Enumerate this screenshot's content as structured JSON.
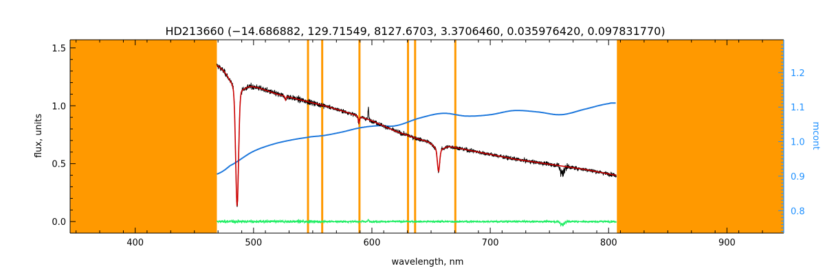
{
  "chart_data": {
    "type": "line",
    "title": "HD213660    (−14.686882, 129.71549, 8127.6703, 3.3706460, 0.035976420, 0.097831770)",
    "xlabel": "wavelength, nm",
    "ylabel": "flux, units",
    "y2label": "mcont",
    "xlim": [
      345,
      948
    ],
    "ylim": [
      -0.1,
      1.57
    ],
    "y2lim": [
      0.735,
      1.295
    ],
    "xticks": [
      400,
      500,
      600,
      700,
      800,
      900
    ],
    "xtick_labels": [
      "400",
      "500",
      "600",
      "700",
      "800",
      "900"
    ],
    "yticks": [
      0.0,
      0.5,
      1.0,
      1.5
    ],
    "ytick_labels": [
      "0.0",
      "0.5",
      "1.0",
      "1.5"
    ],
    "y2ticks": [
      0.8,
      0.9,
      1.0,
      1.1,
      1.2
    ],
    "y2tick_labels": [
      "0.8",
      "0.9",
      "1.0",
      "1.1",
      "1.2"
    ],
    "masked_regions": [
      [
        345,
        469
      ],
      [
        807,
        948
      ]
    ],
    "masked_lines": [
      546,
      558,
      589.5,
      630.5,
      636.5,
      670.5
    ],
    "continuum_knots": {
      "x": [
        469,
        480,
        500,
        520,
        545,
        560,
        575,
        590,
        605,
        620,
        640,
        660,
        680,
        700,
        720,
        740,
        760,
        780,
        800,
        806
      ],
      "y": [
        0.906,
        0.93,
        0.972,
        0.996,
        1.012,
        1.018,
        1.028,
        1.04,
        1.046,
        1.046,
        1.068,
        1.082,
        1.074,
        1.078,
        1.09,
        1.086,
        1.078,
        1.094,
        1.11,
        1.112
      ]
    },
    "model_anchors": {
      "x": [
        469,
        480,
        500,
        520,
        540,
        560,
        580,
        600,
        620,
        640,
        660,
        680,
        700,
        720,
        740,
        760,
        780,
        806
      ],
      "y": [
        1.35,
        1.29,
        1.17,
        1.1,
        1.05,
        1.0,
        0.94,
        0.87,
        0.78,
        0.71,
        0.66,
        0.62,
        0.58,
        0.54,
        0.51,
        0.48,
        0.45,
        0.4
      ]
    },
    "absorption_lines": [
      {
        "x": 486.1,
        "depth": 0.8,
        "width": 1.3
      },
      {
        "x": 434.0,
        "depth": 0.0,
        "width": 1.0
      },
      {
        "x": 656.3,
        "depth": 0.28,
        "width": 1.0
      },
      {
        "x": 589.0,
        "depth": 0.06,
        "width": 0.6
      },
      {
        "x": 527.0,
        "depth": 0.03,
        "width": 0.5
      }
    ],
    "series": [
      {
        "role": "observed",
        "color": "#000000",
        "axis": "left"
      },
      {
        "role": "model",
        "color": "#cc0000",
        "axis": "left"
      },
      {
        "role": "continuum",
        "color": "#1e78dc",
        "axis": "right"
      },
      {
        "role": "residual",
        "color": "#22ee66",
        "axis": "left"
      }
    ],
    "grid": false,
    "colors": {
      "mask": "#ff9900",
      "axis_right": "#1e90ff",
      "axis": "#000000"
    }
  }
}
